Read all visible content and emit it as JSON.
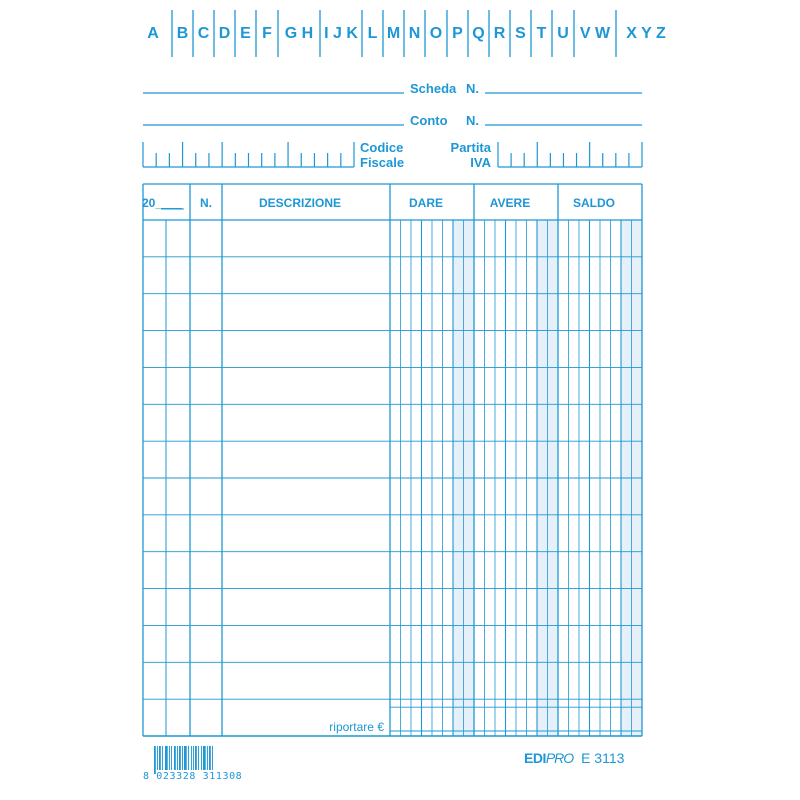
{
  "alphabet_index": [
    "A",
    "B",
    "C",
    "D",
    "E",
    "F",
    "G H",
    "I J K",
    "L",
    "M",
    "N",
    "O",
    "P",
    "Q",
    "R",
    "S",
    "T",
    "U",
    "V W",
    "X Y Z"
  ],
  "header_fields": {
    "scheda_label": "Scheda",
    "scheda_n": "N.",
    "conto_label": "Conto",
    "conto_n": "N.",
    "codice_line1": "Codice",
    "codice_line2": "Fiscale",
    "partita_line1": "Partita",
    "partita_line2": "IVA"
  },
  "table": {
    "columns": {
      "year": "20____",
      "number": "N.",
      "description": "DESCRIZIONE",
      "dare": "DARE",
      "avere": "AVERE",
      "saldo": "SALDO"
    },
    "row_count": 14,
    "footer_label": "riportare €"
  },
  "footer": {
    "barcode_digits": "8 023328 311308",
    "brand": "EDIPRO",
    "brand_bold": "EDI",
    "brand_light": "PRO",
    "product_code": "E 3113"
  },
  "colors": {
    "ink": "#1d97d5",
    "shade": "#e6f0f8"
  }
}
